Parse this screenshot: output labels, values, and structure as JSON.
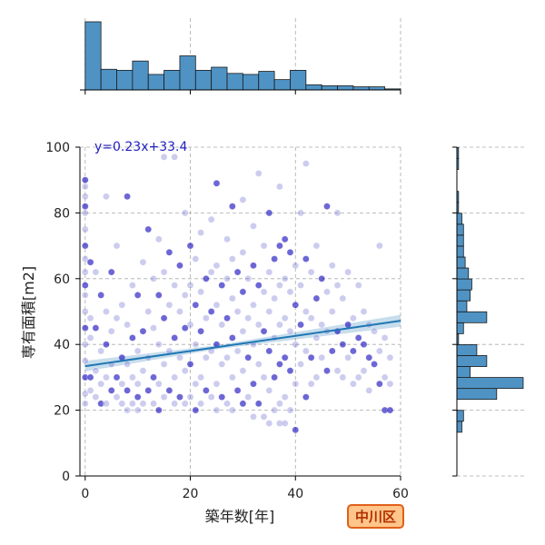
{
  "chart_data": {
    "type": "scatter",
    "xlabel": "築年数[年]",
    "ylabel": "専有面積[m2]",
    "xlim": [
      -1,
      60
    ],
    "ylim": [
      0,
      100
    ],
    "x_ticks": [
      0,
      20,
      40,
      60
    ],
    "y_ticks": [
      0,
      20,
      40,
      60,
      80,
      100
    ],
    "grid": true,
    "annotation": "y=0.23x+33.4",
    "regression": {
      "slope": 0.23,
      "intercept": 33.4
    },
    "ward_label": "中川区",
    "points": [
      [
        0,
        90
      ],
      [
        0,
        88
      ],
      [
        0,
        85
      ],
      [
        0,
        82
      ],
      [
        0,
        80
      ],
      [
        0,
        75
      ],
      [
        0,
        70
      ],
      [
        0,
        66
      ],
      [
        0,
        62
      ],
      [
        0,
        58
      ],
      [
        0,
        55
      ],
      [
        0,
        50
      ],
      [
        0,
        45
      ],
      [
        0,
        40
      ],
      [
        0,
        35
      ],
      [
        0,
        30
      ],
      [
        0,
        25
      ],
      [
        0,
        22
      ],
      [
        1,
        65
      ],
      [
        1,
        48
      ],
      [
        1,
        42
      ],
      [
        1,
        30
      ],
      [
        1,
        26
      ],
      [
        2,
        62
      ],
      [
        2,
        45
      ],
      [
        2,
        32
      ],
      [
        2,
        24
      ],
      [
        3,
        55
      ],
      [
        3,
        38
      ],
      [
        3,
        28
      ],
      [
        3,
        22
      ],
      [
        4,
        85
      ],
      [
        4,
        50
      ],
      [
        4,
        40
      ],
      [
        4,
        30
      ],
      [
        4,
        22
      ],
      [
        5,
        62
      ],
      [
        5,
        44
      ],
      [
        5,
        34
      ],
      [
        5,
        26
      ],
      [
        6,
        70
      ],
      [
        6,
        48
      ],
      [
        6,
        30
      ],
      [
        6,
        24
      ],
      [
        7,
        52
      ],
      [
        7,
        36
      ],
      [
        7,
        28
      ],
      [
        7,
        22
      ],
      [
        8,
        85
      ],
      [
        8,
        46
      ],
      [
        8,
        34
      ],
      [
        8,
        26
      ],
      [
        8,
        20
      ],
      [
        9,
        58
      ],
      [
        9,
        42
      ],
      [
        9,
        30
      ],
      [
        9,
        22
      ],
      [
        10,
        55
      ],
      [
        10,
        38
      ],
      [
        10,
        28
      ],
      [
        10,
        24
      ],
      [
        10,
        20
      ],
      [
        11,
        65
      ],
      [
        11,
        44
      ],
      [
        11,
        32
      ],
      [
        11,
        22
      ],
      [
        12,
        75
      ],
      [
        12,
        50
      ],
      [
        12,
        36
      ],
      [
        12,
        26
      ],
      [
        13,
        60
      ],
      [
        13,
        45
      ],
      [
        13,
        30
      ],
      [
        13,
        22
      ],
      [
        14,
        72
      ],
      [
        14,
        55
      ],
      [
        14,
        40
      ],
      [
        14,
        28
      ],
      [
        14,
        20
      ],
      [
        15,
        97
      ],
      [
        15,
        62
      ],
      [
        15,
        48
      ],
      [
        15,
        34
      ],
      [
        15,
        24
      ],
      [
        16,
        68
      ],
      [
        16,
        52
      ],
      [
        16,
        38
      ],
      [
        16,
        26
      ],
      [
        17,
        97
      ],
      [
        17,
        58
      ],
      [
        17,
        42
      ],
      [
        17,
        30
      ],
      [
        17,
        22
      ],
      [
        18,
        64
      ],
      [
        18,
        50
      ],
      [
        18,
        36
      ],
      [
        18,
        24
      ],
      [
        19,
        80
      ],
      [
        19,
        55
      ],
      [
        19,
        45
      ],
      [
        19,
        32
      ],
      [
        19,
        22
      ],
      [
        20,
        70
      ],
      [
        20,
        58
      ],
      [
        20,
        46
      ],
      [
        20,
        34
      ],
      [
        20,
        24
      ],
      [
        21,
        66
      ],
      [
        21,
        52
      ],
      [
        21,
        40
      ],
      [
        21,
        28
      ],
      [
        21,
        20
      ],
      [
        22,
        74
      ],
      [
        22,
        56
      ],
      [
        22,
        44
      ],
      [
        22,
        30
      ],
      [
        22,
        22
      ],
      [
        23,
        60
      ],
      [
        23,
        48
      ],
      [
        23,
        36
      ],
      [
        23,
        26
      ],
      [
        24,
        78
      ],
      [
        24,
        62
      ],
      [
        24,
        50
      ],
      [
        24,
        38
      ],
      [
        24,
        24
      ],
      [
        25,
        89
      ],
      [
        25,
        64
      ],
      [
        25,
        52
      ],
      [
        25,
        40
      ],
      [
        25,
        28
      ],
      [
        25,
        20
      ],
      [
        26,
        58
      ],
      [
        26,
        46
      ],
      [
        26,
        34
      ],
      [
        26,
        24
      ],
      [
        27,
        72
      ],
      [
        27,
        60
      ],
      [
        27,
        48
      ],
      [
        27,
        36
      ],
      [
        27,
        22
      ],
      [
        28,
        82
      ],
      [
        28,
        66
      ],
      [
        28,
        54
      ],
      [
        28,
        42
      ],
      [
        28,
        30
      ],
      [
        28,
        20
      ],
      [
        29,
        62
      ],
      [
        29,
        50
      ],
      [
        29,
        38
      ],
      [
        29,
        26
      ],
      [
        30,
        84
      ],
      [
        30,
        68
      ],
      [
        30,
        56
      ],
      [
        30,
        44
      ],
      [
        30,
        32
      ],
      [
        30,
        22
      ],
      [
        31,
        60
      ],
      [
        31,
        48
      ],
      [
        31,
        36
      ],
      [
        31,
        24
      ],
      [
        32,
        76
      ],
      [
        32,
        64
      ],
      [
        32,
        52
      ],
      [
        32,
        40
      ],
      [
        32,
        28
      ],
      [
        32,
        18
      ],
      [
        33,
        92
      ],
      [
        33,
        58
      ],
      [
        33,
        46
      ],
      [
        33,
        34
      ],
      [
        33,
        22
      ],
      [
        34,
        70
      ],
      [
        34,
        56
      ],
      [
        34,
        44
      ],
      [
        34,
        30
      ],
      [
        34,
        18
      ],
      [
        35,
        80
      ],
      [
        35,
        62
      ],
      [
        35,
        50
      ],
      [
        35,
        38
      ],
      [
        35,
        26
      ],
      [
        35,
        16
      ],
      [
        36,
        66
      ],
      [
        36,
        54
      ],
      [
        36,
        42
      ],
      [
        36,
        30
      ],
      [
        36,
        20
      ],
      [
        37,
        88
      ],
      [
        37,
        70
      ],
      [
        37,
        58
      ],
      [
        37,
        46
      ],
      [
        37,
        34
      ],
      [
        37,
        22
      ],
      [
        37,
        16
      ],
      [
        38,
        72
      ],
      [
        38,
        60
      ],
      [
        38,
        48
      ],
      [
        38,
        36
      ],
      [
        38,
        24
      ],
      [
        38,
        16
      ],
      [
        39,
        68
      ],
      [
        39,
        56
      ],
      [
        39,
        44
      ],
      [
        39,
        32
      ],
      [
        39,
        20
      ],
      [
        40,
        64
      ],
      [
        40,
        52
      ],
      [
        40,
        40
      ],
      [
        40,
        28
      ],
      [
        40,
        14
      ],
      [
        41,
        80
      ],
      [
        41,
        58
      ],
      [
        41,
        46
      ],
      [
        41,
        34
      ],
      [
        42,
        95
      ],
      [
        42,
        66
      ],
      [
        42,
        50
      ],
      [
        42,
        38
      ],
      [
        42,
        24
      ],
      [
        43,
        62
      ],
      [
        43,
        48
      ],
      [
        43,
        36
      ],
      [
        43,
        28
      ],
      [
        44,
        70
      ],
      [
        44,
        54
      ],
      [
        44,
        42
      ],
      [
        44,
        30
      ],
      [
        45,
        60
      ],
      [
        45,
        46
      ],
      [
        45,
        36
      ],
      [
        46,
        82
      ],
      [
        46,
        56
      ],
      [
        46,
        44
      ],
      [
        46,
        32
      ],
      [
        47,
        64
      ],
      [
        47,
        50
      ],
      [
        47,
        38
      ],
      [
        48,
        80
      ],
      [
        48,
        58
      ],
      [
        48,
        44
      ],
      [
        48,
        32
      ],
      [
        49,
        54
      ],
      [
        49,
        40
      ],
      [
        49,
        30
      ],
      [
        50,
        62
      ],
      [
        50,
        46
      ],
      [
        50,
        36
      ],
      [
        51,
        48
      ],
      [
        51,
        38
      ],
      [
        51,
        28
      ],
      [
        52,
        58
      ],
      [
        52,
        42
      ],
      [
        52,
        30
      ],
      [
        53,
        50
      ],
      [
        53,
        40
      ],
      [
        53,
        32
      ],
      [
        54,
        46
      ],
      [
        54,
        36
      ],
      [
        54,
        26
      ],
      [
        55,
        44
      ],
      [
        55,
        34
      ],
      [
        56,
        70
      ],
      [
        56,
        38
      ],
      [
        56,
        28
      ],
      [
        57,
        42
      ],
      [
        57,
        30
      ],
      [
        57,
        20
      ],
      [
        58,
        36
      ],
      [
        58,
        28
      ],
      [
        58,
        20
      ]
    ],
    "x_histogram": {
      "bin_width": 3,
      "start": 0,
      "counts": [
        66,
        20,
        19,
        28,
        15,
        19,
        33,
        19,
        22,
        16,
        15,
        18,
        10,
        19,
        5,
        4,
        4,
        3,
        3,
        1
      ]
    },
    "y_histogram": {
      "bin_width": 3.33,
      "start": 13.3,
      "counts": [
        3,
        4,
        0,
        24,
        40,
        8,
        18,
        12,
        1,
        4,
        18,
        6,
        8,
        9,
        7,
        5,
        4,
        4,
        4,
        3,
        1,
        1,
        0,
        0,
        1,
        1,
        0,
        0,
        0,
        0
      ]
    }
  }
}
